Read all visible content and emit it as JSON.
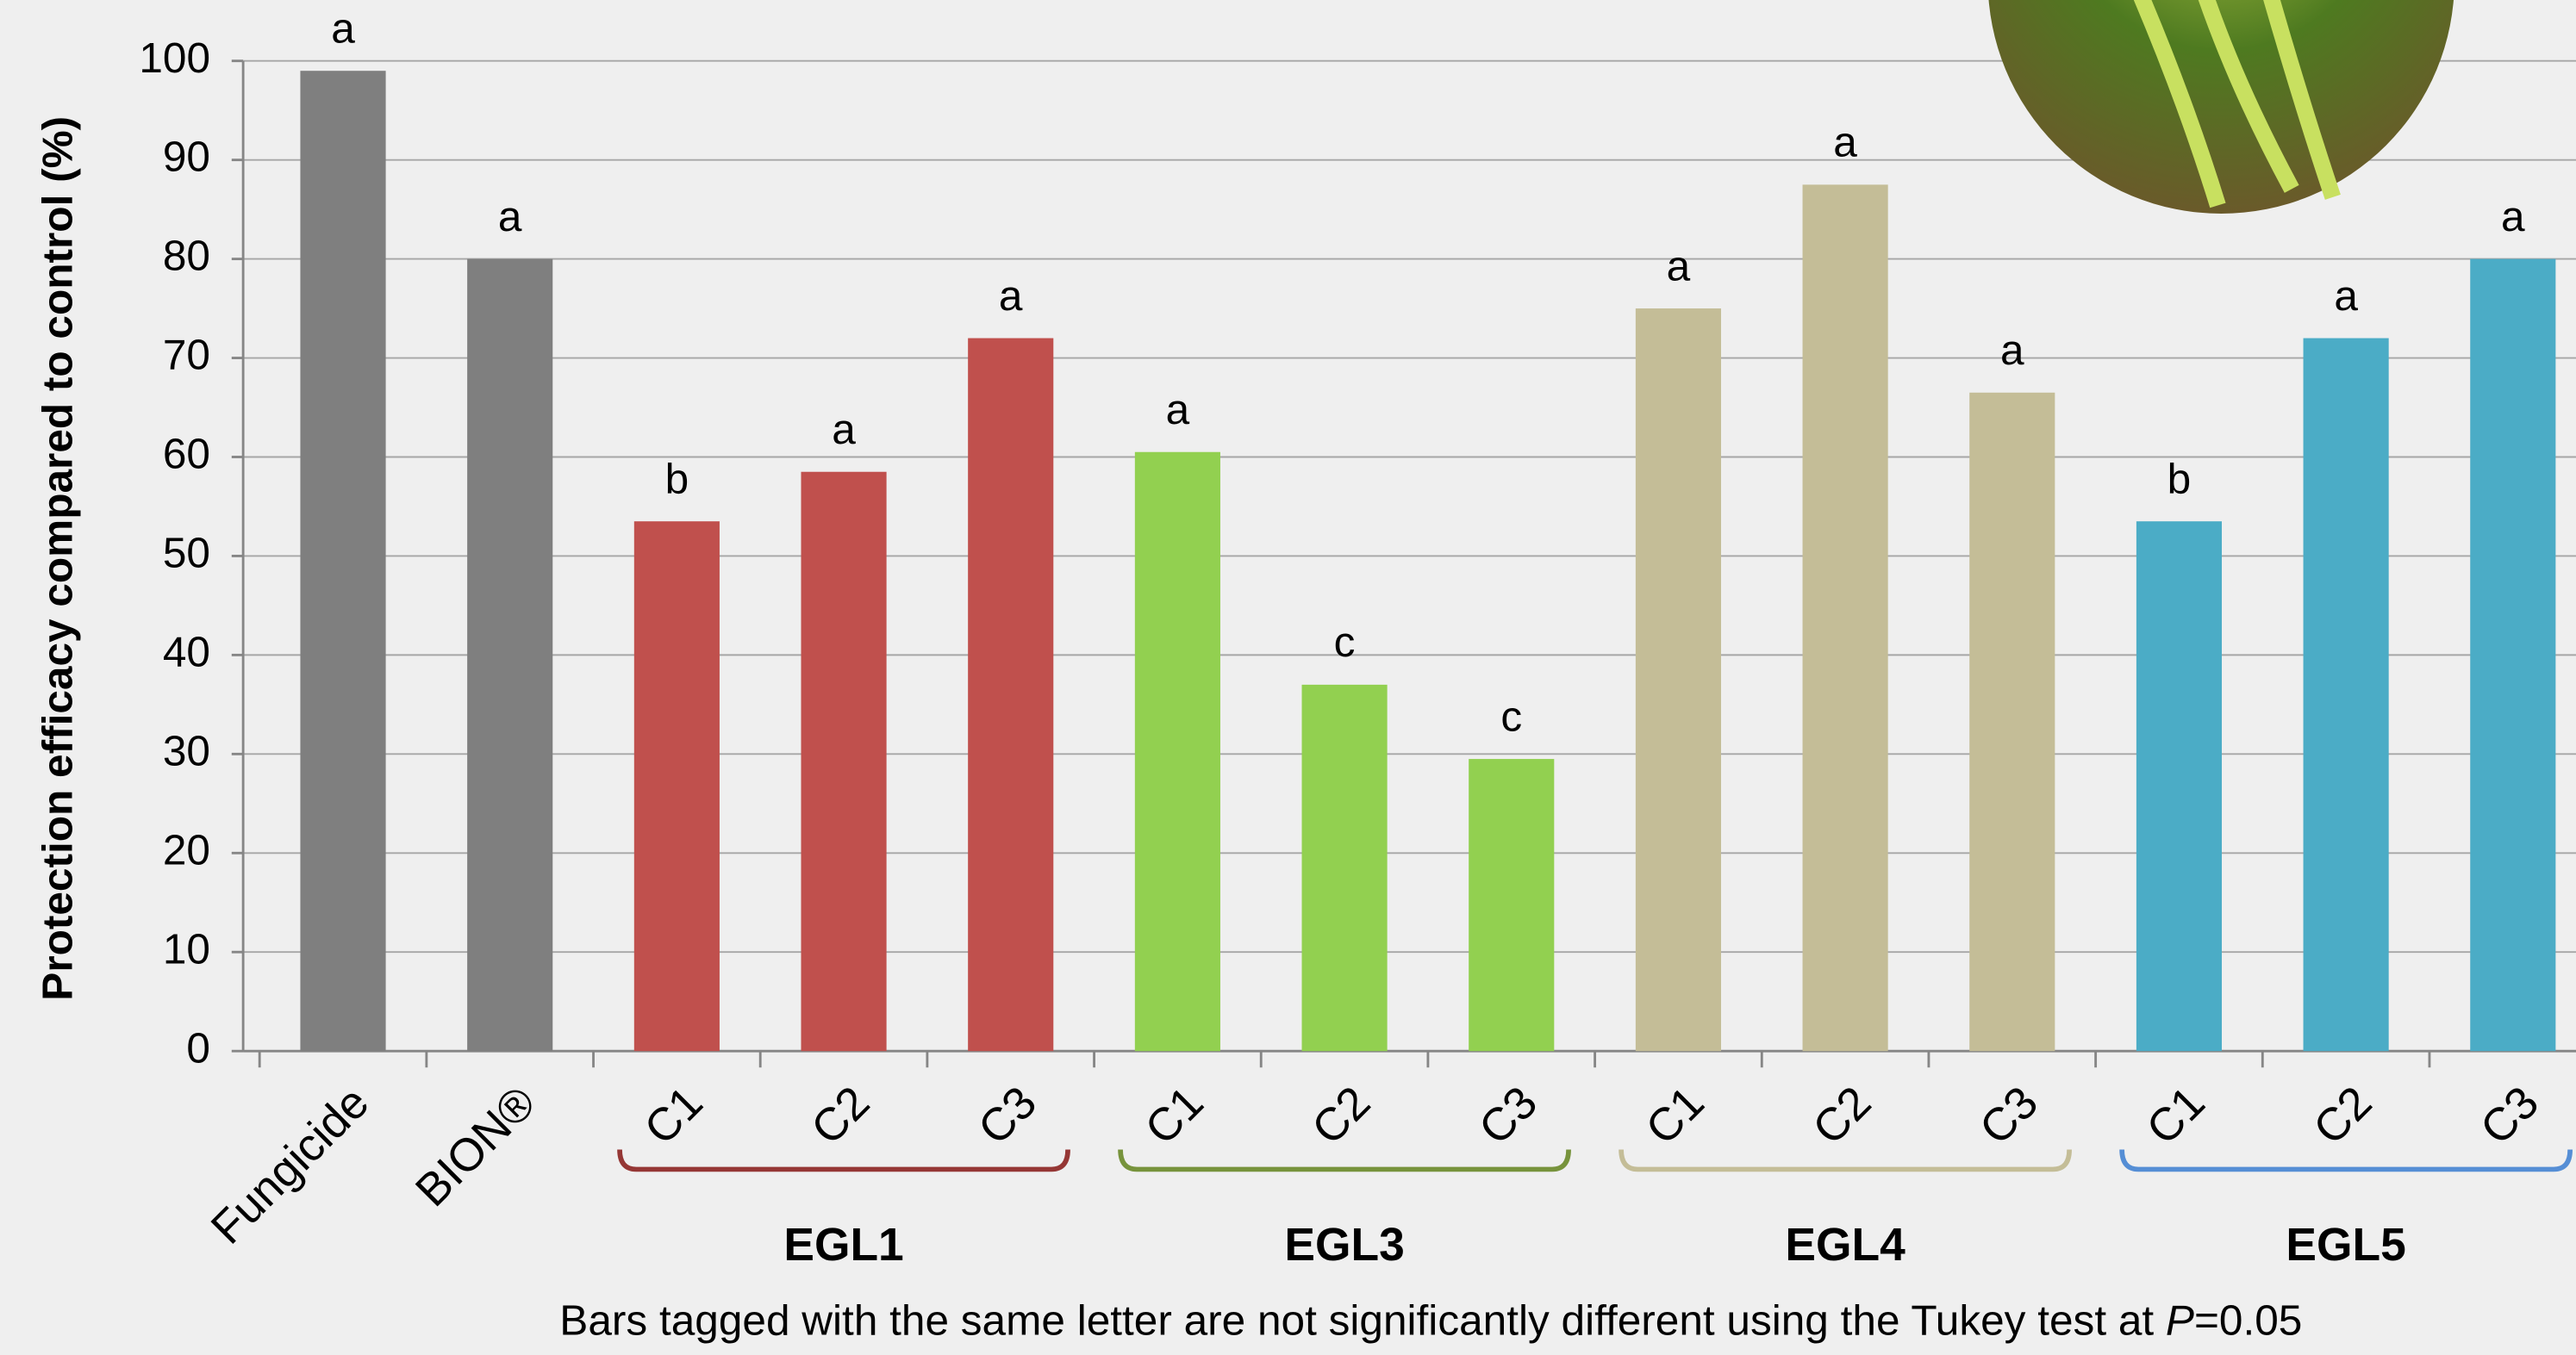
{
  "chart_data": {
    "type": "bar",
    "y_label": "Protection efficacy compared to control (%)",
    "categories": [
      "Fungicide",
      "BION®",
      "C1",
      "C2",
      "C3",
      "C1",
      "C2",
      "C3",
      "C1",
      "C2",
      "C3",
      "C1",
      "C2",
      "C3"
    ],
    "values": [
      99,
      80,
      53.5,
      58.5,
      72,
      60.5,
      37,
      29.5,
      75,
      87.5,
      66.5,
      53.5,
      72,
      80
    ],
    "letters": [
      "a",
      "a",
      "b",
      "a",
      "a",
      "a",
      "c",
      "c",
      "a",
      "a",
      "a",
      "b",
      "a",
      "a"
    ],
    "colors": [
      "#7f7f7f",
      "#7f7f7f",
      "#c0504d",
      "#c0504d",
      "#c0504d",
      "#92d050",
      "#92d050",
      "#92d050",
      "#c4bd97",
      "#c4bd97",
      "#c4bd97",
      "#4bacc6",
      "#4bacc6",
      "#4bacc6"
    ],
    "groups": [
      {
        "name": "EGL1",
        "color": "#953735"
      },
      {
        "name": "EGL3",
        "color": "#77933c"
      },
      {
        "name": "EGL4",
        "color": "#c4bd97"
      },
      {
        "name": "EGL5",
        "color": "#558ed5"
      }
    ],
    "ylim": [
      0,
      100
    ],
    "yticks": [
      0,
      10,
      20,
      30,
      40,
      50,
      60,
      70,
      80,
      90,
      100
    ],
    "grid": true,
    "note": {
      "text": "Bars tagged with the same letter are not significantly different using the Tukey test at ",
      "italic": "P",
      "rest": "=0.05"
    }
  }
}
